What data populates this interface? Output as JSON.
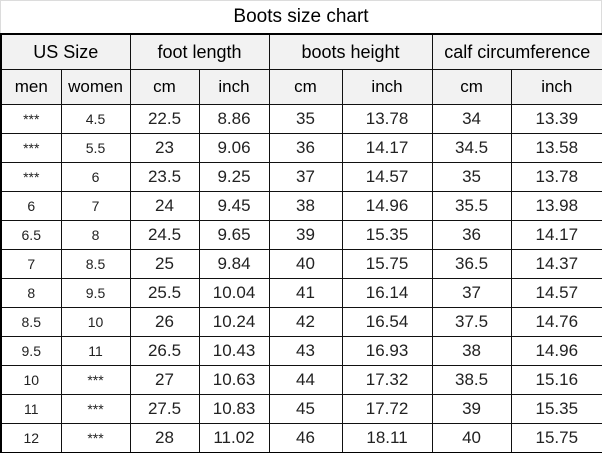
{
  "title": "Boots size chart",
  "table": {
    "header_groups": [
      {
        "label": "US Size",
        "span": 2
      },
      {
        "label": "foot length",
        "span": 2
      },
      {
        "label": "boots height",
        "span": 2
      },
      {
        "label": "calf circumference",
        "span": 2
      }
    ],
    "sub_headers": [
      "men",
      "women",
      "cm",
      "inch",
      "cm",
      "inch",
      "cm",
      "inch"
    ],
    "rows": [
      [
        "***",
        "4.5",
        "22.5",
        "8.86",
        "35",
        "13.78",
        "34",
        "13.39"
      ],
      [
        "***",
        "5.5",
        "23",
        "9.06",
        "36",
        "14.17",
        "34.5",
        "13.58"
      ],
      [
        "***",
        "6",
        "23.5",
        "9.25",
        "37",
        "14.57",
        "35",
        "13.78"
      ],
      [
        "6",
        "7",
        "24",
        "9.45",
        "38",
        "14.96",
        "35.5",
        "13.98"
      ],
      [
        "6.5",
        "8",
        "24.5",
        "9.65",
        "39",
        "15.35",
        "36",
        "14.17"
      ],
      [
        "7",
        "8.5",
        "25",
        "9.84",
        "40",
        "15.75",
        "36.5",
        "14.37"
      ],
      [
        "8",
        "9.5",
        "25.5",
        "10.04",
        "41",
        "16.14",
        "37",
        "14.57"
      ],
      [
        "8.5",
        "10",
        "26",
        "10.24",
        "42",
        "16.54",
        "37.5",
        "14.76"
      ],
      [
        "9.5",
        "11",
        "26.5",
        "10.43",
        "43",
        "16.93",
        "38",
        "14.96"
      ],
      [
        "10",
        "***",
        "27",
        "10.63",
        "44",
        "17.32",
        "38.5",
        "15.16"
      ],
      [
        "11",
        "***",
        "27.5",
        "10.83",
        "45",
        "17.72",
        "39",
        "15.35"
      ],
      [
        "12",
        "***",
        "28",
        "11.02",
        "46",
        "18.11",
        "40",
        "15.75"
      ]
    ]
  },
  "chart_data": {
    "type": "table",
    "title": "Boots size chart",
    "columns": [
      "US Size men",
      "US Size women",
      "foot length cm",
      "foot length inch",
      "boots height cm",
      "boots height inch",
      "calf circumference cm",
      "calf circumference inch"
    ],
    "rows": [
      [
        "***",
        "4.5",
        "22.5",
        "8.86",
        "35",
        "13.78",
        "34",
        "13.39"
      ],
      [
        "***",
        "5.5",
        "23",
        "9.06",
        "36",
        "14.17",
        "34.5",
        "13.58"
      ],
      [
        "***",
        "6",
        "23.5",
        "9.25",
        "37",
        "14.57",
        "35",
        "13.78"
      ],
      [
        "6",
        "7",
        "24",
        "9.45",
        "38",
        "14.96",
        "35.5",
        "13.98"
      ],
      [
        "6.5",
        "8",
        "24.5",
        "9.65",
        "39",
        "15.35",
        "36",
        "14.17"
      ],
      [
        "7",
        "8.5",
        "25",
        "9.84",
        "40",
        "15.75",
        "36.5",
        "14.37"
      ],
      [
        "8",
        "9.5",
        "25.5",
        "10.04",
        "41",
        "16.14",
        "37",
        "14.57"
      ],
      [
        "8.5",
        "10",
        "26",
        "10.24",
        "42",
        "16.54",
        "37.5",
        "14.76"
      ],
      [
        "9.5",
        "11",
        "26.5",
        "10.43",
        "43",
        "16.93",
        "38",
        "14.96"
      ],
      [
        "10",
        "***",
        "27",
        "10.63",
        "44",
        "17.32",
        "38.5",
        "15.16"
      ],
      [
        "11",
        "***",
        "27.5",
        "10.83",
        "45",
        "17.72",
        "39",
        "15.35"
      ],
      [
        "12",
        "***",
        "28",
        "11.02",
        "46",
        "18.11",
        "40",
        "15.75"
      ]
    ]
  },
  "colors": {
    "header_bg": "#f2f2f2",
    "cell_bg": "#ffffff",
    "border": "#111111",
    "text": "#222222"
  }
}
